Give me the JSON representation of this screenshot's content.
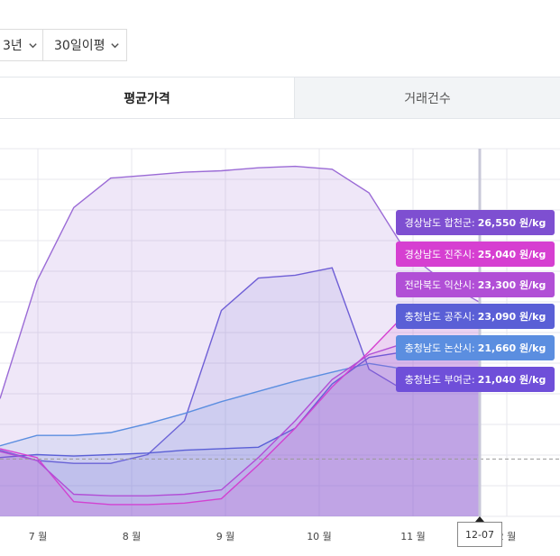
{
  "controls": {
    "period": "3년",
    "average": "30일이평"
  },
  "tabs": {
    "active": "평균가격",
    "inactive": "거래건수"
  },
  "tooltip": [
    {
      "region": "경상남도 합천군:",
      "value": "26,550 원/kg",
      "color": "#7e4fd1"
    },
    {
      "region": "경상남도 진주시:",
      "value": "25,040 원/kg",
      "color": "#d63fd1"
    },
    {
      "region": "전라북도 익산시:",
      "value": "23,300 원/kg",
      "color": "#b14fd6"
    },
    {
      "region": "충청남도 공주시:",
      "value": "23,090 원/kg",
      "color": "#5a5fd6"
    },
    {
      "region": "충청남도 논산시:",
      "value": "21,660 원/kg",
      "color": "#5b8ee0"
    },
    {
      "region": "충청남도 부여군:",
      "value": "21,040 원/kg",
      "color": "#6f4fd9"
    }
  ],
  "crosshair_date": "12-07",
  "chart_data": {
    "type": "area",
    "x_ticks": [
      "7 월",
      "8 월",
      "9 월",
      "10 월",
      "11 월",
      "2 월"
    ],
    "series": [
      {
        "name": "경상남도 합천군",
        "color": "#9b6bd6",
        "points": [
          [
            0,
            20000
          ],
          [
            1,
            28000
          ],
          [
            2,
            33000
          ],
          [
            3,
            35000
          ],
          [
            4,
            35200
          ],
          [
            5,
            35400
          ],
          [
            6,
            35500
          ],
          [
            7,
            35700
          ],
          [
            8,
            35800
          ],
          [
            9,
            35600
          ],
          [
            10,
            34000
          ],
          [
            11,
            30000
          ],
          [
            12,
            28000
          ],
          [
            13,
            26550
          ]
        ]
      },
      {
        "name": "충청남도 부여군",
        "color": "#6f5fd6",
        "points": [
          [
            0,
            16500
          ],
          [
            1,
            15800
          ],
          [
            2,
            15600
          ],
          [
            3,
            15600
          ],
          [
            4,
            16200
          ],
          [
            5,
            18500
          ],
          [
            6,
            26000
          ],
          [
            7,
            28200
          ],
          [
            8,
            28400
          ],
          [
            9,
            28900
          ],
          [
            10,
            22000
          ],
          [
            11,
            20500
          ],
          [
            12,
            21200
          ],
          [
            13,
            21040
          ]
        ]
      },
      {
        "name": "충청남도 논산시",
        "color": "#5b8ee0",
        "points": [
          [
            0,
            16800
          ],
          [
            1,
            17500
          ],
          [
            2,
            17500
          ],
          [
            3,
            17700
          ],
          [
            4,
            18300
          ],
          [
            5,
            19000
          ],
          [
            6,
            19800
          ],
          [
            7,
            20500
          ],
          [
            8,
            21200
          ],
          [
            9,
            21800
          ],
          [
            10,
            22400
          ],
          [
            11,
            22000
          ],
          [
            12,
            21800
          ],
          [
            13,
            21660
          ]
        ]
      },
      {
        "name": "충청남도 공주시",
        "color": "#5a5fd6",
        "points": [
          [
            0,
            16000
          ],
          [
            1,
            16200
          ],
          [
            2,
            16100
          ],
          [
            3,
            16200
          ],
          [
            4,
            16300
          ],
          [
            5,
            16500
          ],
          [
            6,
            16600
          ],
          [
            7,
            16700
          ],
          [
            8,
            18000
          ],
          [
            9,
            21000
          ],
          [
            10,
            22800
          ],
          [
            11,
            23200
          ],
          [
            12,
            23100
          ],
          [
            13,
            23090
          ]
        ]
      },
      {
        "name": "경상남도 진주시",
        "color": "#d63fd1",
        "points": [
          [
            0,
            16600
          ],
          [
            1,
            16000
          ],
          [
            2,
            13000
          ],
          [
            3,
            12800
          ],
          [
            4,
            12800
          ],
          [
            5,
            12900
          ],
          [
            6,
            13200
          ],
          [
            7,
            15500
          ],
          [
            8,
            18000
          ],
          [
            9,
            20800
          ],
          [
            10,
            23200
          ],
          [
            11,
            25800
          ],
          [
            12,
            25200
          ],
          [
            13,
            25040
          ]
        ]
      },
      {
        "name": "전라북도 익산시",
        "color": "#b14fd6",
        "points": [
          [
            0,
            16400
          ],
          [
            1,
            15800
          ],
          [
            2,
            13500
          ],
          [
            3,
            13400
          ],
          [
            4,
            13400
          ],
          [
            5,
            13500
          ],
          [
            6,
            13800
          ],
          [
            7,
            16000
          ],
          [
            8,
            18500
          ],
          [
            9,
            21300
          ],
          [
            10,
            23000
          ],
          [
            11,
            23800
          ],
          [
            12,
            23300
          ],
          [
            13,
            23300
          ]
        ]
      }
    ],
    "ylim": [
      12000,
      37000
    ],
    "grid": true,
    "legend": "bottom"
  }
}
